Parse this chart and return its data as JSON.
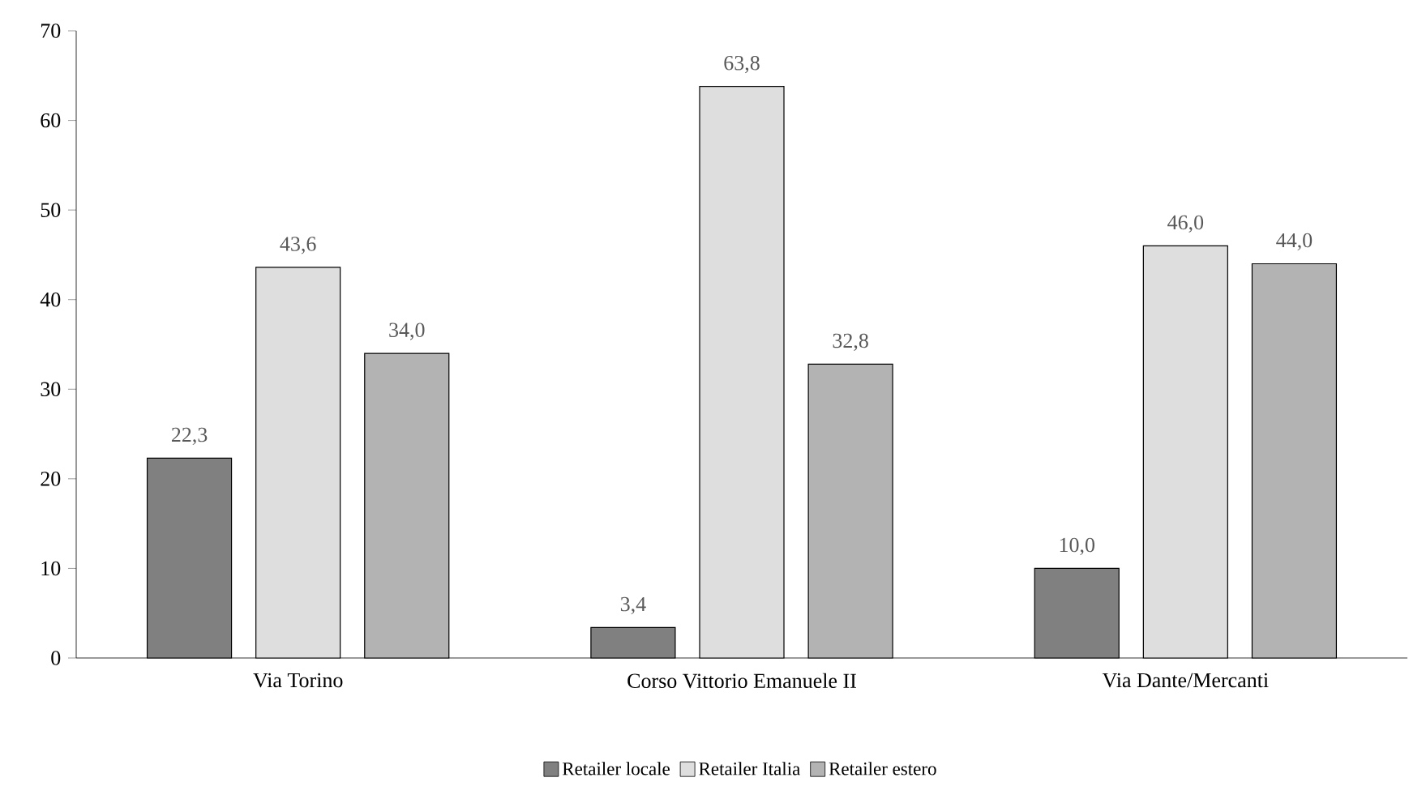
{
  "chart_data": {
    "type": "bar",
    "categories": [
      "Via Torino",
      "Corso Vittorio Emanuele II",
      "Via Dante/Mercanti"
    ],
    "series": [
      {
        "name": "Retailer locale",
        "color": "#808080",
        "values": [
          22.3,
          3.4,
          10.0
        ],
        "value_labels": [
          "22,3",
          "3,4",
          "10,0"
        ]
      },
      {
        "name": "Retailer Italia",
        "color": "#dedede",
        "values": [
          43.6,
          63.8,
          46.0
        ],
        "value_labels": [
          "43,6",
          "63,8",
          "46,0"
        ]
      },
      {
        "name": "Retailer estero",
        "color": "#b3b3b3",
        "values": [
          34.0,
          32.8,
          44.0
        ],
        "value_labels": [
          "34,0",
          "32,8",
          "44,0"
        ]
      }
    ],
    "ylim": [
      0,
      70
    ],
    "yticks": [
      0,
      10,
      20,
      30,
      40,
      50,
      60,
      70
    ],
    "grid": false,
    "legend": "bottom"
  }
}
